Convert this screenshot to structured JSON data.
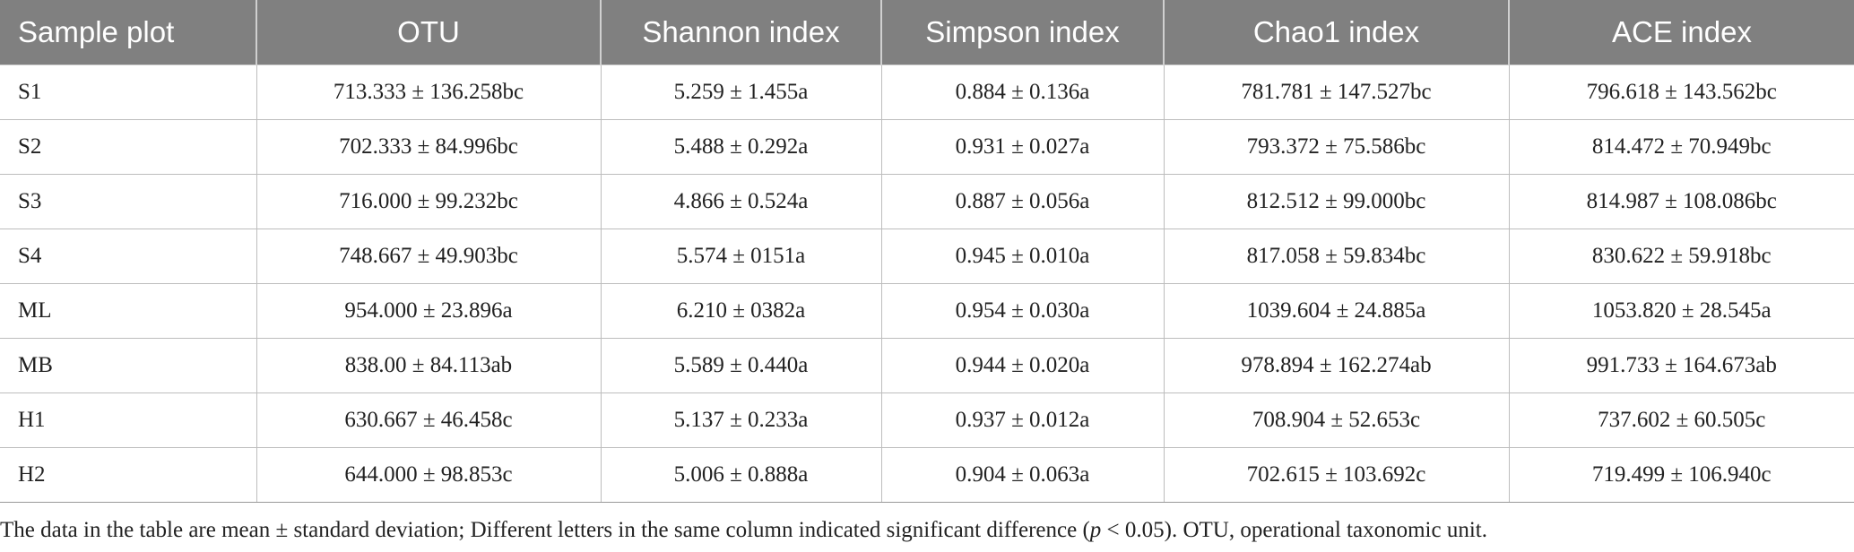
{
  "table": {
    "headers": [
      "Sample plot",
      "OTU",
      "Shannon index",
      "Simpson index",
      "Chao1 index",
      "ACE index"
    ],
    "rows": [
      [
        "S1",
        "713.333 ± 136.258bc",
        "5.259 ± 1.455a",
        "0.884 ± 0.136a",
        "781.781 ± 147.527bc",
        "796.618 ± 143.562bc"
      ],
      [
        "S2",
        "702.333 ± 84.996bc",
        "5.488 ± 0.292a",
        "0.931 ± 0.027a",
        "793.372 ± 75.586bc",
        "814.472 ± 70.949bc"
      ],
      [
        "S3",
        "716.000 ± 99.232bc",
        "4.866 ± 0.524a",
        "0.887 ± 0.056a",
        "812.512 ± 99.000bc",
        "814.987 ± 108.086bc"
      ],
      [
        "S4",
        "748.667 ± 49.903bc",
        "5.574 ± 0151a",
        "0.945 ± 0.010a",
        "817.058 ± 59.834bc",
        "830.622 ± 59.918bc"
      ],
      [
        "ML",
        "954.000 ± 23.896a",
        "6.210 ± 0382a",
        "0.954 ± 0.030a",
        "1039.604 ± 24.885a",
        "1053.820 ± 28.545a"
      ],
      [
        "MB",
        "838.00 ± 84.113ab",
        "5.589 ± 0.440a",
        "0.944 ± 0.020a",
        "978.894 ± 162.274ab",
        "991.733 ± 164.673ab"
      ],
      [
        "H1",
        "630.667 ± 46.458c",
        "5.137 ± 0.233a",
        "0.937 ± 0.012a",
        "708.904 ± 52.653c",
        "737.602 ± 60.505c"
      ],
      [
        "H2",
        "644.000 ± 98.853c",
        "5.006 ± 0.888a",
        "0.904 ± 0.063a",
        "702.615 ± 103.692c",
        "719.499 ± 106.940c"
      ]
    ]
  },
  "footnote": {
    "before": "The data in the table are mean ± standard deviation; Different letters in the same column indicated significant difference (",
    "italic": "p",
    "after": " < 0.05). OTU, operational taxonomic unit."
  },
  "colors": {
    "header_bg": "#808080",
    "header_text": "#ffffff",
    "grid": "#bdbdbd"
  }
}
